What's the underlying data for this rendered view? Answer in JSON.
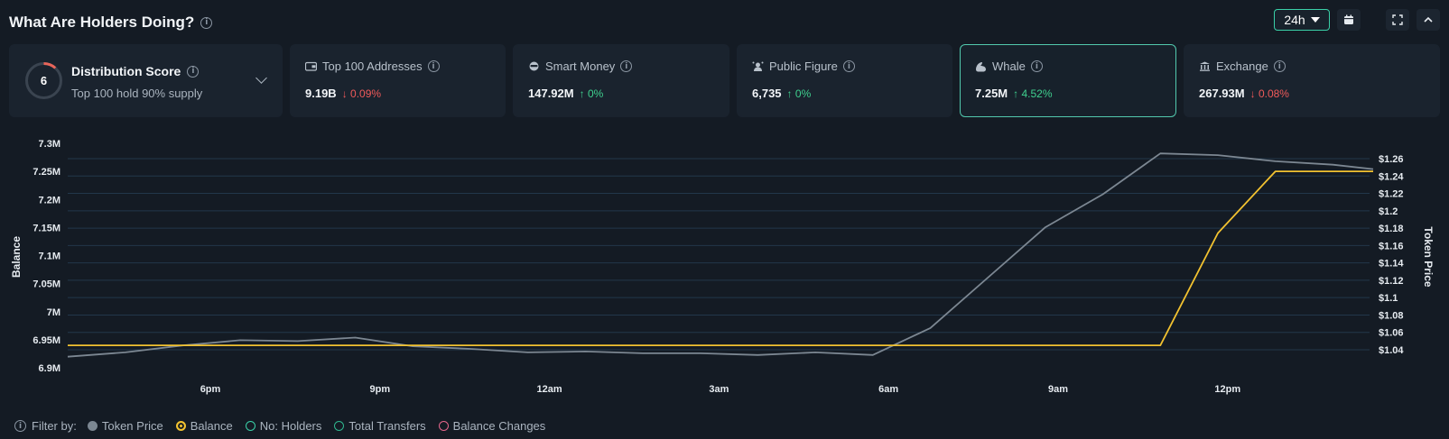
{
  "header": {
    "title": "What Are Holders Doing?",
    "range": "24h"
  },
  "distribution": {
    "score": "6",
    "title": "Distribution Score",
    "subtitle": "Top 100 hold 90% supply"
  },
  "cards": [
    {
      "label": "Top 100 Addresses",
      "value": "9.19B",
      "change": "0.09%",
      "dir": "down",
      "icon": "wallet-icon"
    },
    {
      "label": "Smart Money",
      "value": "147.92M",
      "change": "0%",
      "dir": "up",
      "icon": "smart-money-icon"
    },
    {
      "label": "Public Figure",
      "value": "6,735",
      "change": "0%",
      "dir": "up",
      "icon": "public-figure-icon"
    },
    {
      "label": "Whale",
      "value": "7.25M",
      "change": "4.52%",
      "dir": "up",
      "icon": "whale-icon",
      "active": true
    },
    {
      "label": "Exchange",
      "value": "267.93M",
      "change": "0.08%",
      "dir": "down",
      "icon": "exchange-icon"
    }
  ],
  "colors": {
    "price": "#7c8792",
    "balance": "#f2c230",
    "accent": "#52c9ae",
    "up": "#3fcf8e",
    "down": "#f05a5a"
  },
  "chart_data": {
    "type": "line",
    "x": [
      "6pm",
      "9pm",
      "12am",
      "3am",
      "6am",
      "9am",
      "12pm"
    ],
    "left_axis": {
      "label": "Balance",
      "ticks": [
        "6.9M",
        "6.95M",
        "7M",
        "7.05M",
        "7.1M",
        "7.15M",
        "7.2M",
        "7.25M",
        "7.3M"
      ],
      "range": [
        6.9,
        7.3
      ]
    },
    "right_axis": {
      "label": "Token Price",
      "ticks": [
        "$1.04",
        "$1.06",
        "$1.08",
        "$1.1",
        "$1.12",
        "$1.14",
        "$1.16",
        "$1.18",
        "$1.2",
        "$1.22",
        "$1.24",
        "$1.26"
      ],
      "range": [
        1.03,
        1.27
      ]
    },
    "series": [
      {
        "name": "Token Price",
        "axis": "right",
        "color": "#7c8792",
        "points": [
          [
            -5,
            1.032
          ],
          [
            -4,
            1.037
          ],
          [
            -3,
            1.045
          ],
          [
            -2,
            1.051
          ],
          [
            -1,
            1.05
          ],
          [
            0,
            1.054
          ],
          [
            1,
            1.044
          ],
          [
            2,
            1.041
          ],
          [
            3,
            1.037
          ],
          [
            4,
            1.038
          ],
          [
            5,
            1.036
          ],
          [
            6,
            1.036
          ],
          [
            7,
            1.034
          ],
          [
            8,
            1.037
          ],
          [
            9,
            1.034
          ],
          [
            10,
            1.065
          ],
          [
            11,
            1.123
          ],
          [
            12,
            1.181
          ],
          [
            13,
            1.219
          ],
          [
            14,
            1.266
          ],
          [
            15,
            1.264
          ],
          [
            16,
            1.257
          ],
          [
            17,
            1.253
          ],
          [
            17.7,
            1.248
          ]
        ]
      },
      {
        "name": "Balance",
        "axis": "left",
        "color": "#f2c230",
        "points": [
          [
            -5,
            6.94
          ],
          [
            14,
            6.94
          ],
          [
            15,
            7.14
          ],
          [
            16,
            7.25
          ],
          [
            17.7,
            7.25
          ]
        ]
      }
    ],
    "legend": {
      "label": "Filter by:",
      "items": [
        {
          "name": "Token Price",
          "color": "#7c8792",
          "filled": true
        },
        {
          "name": "Balance",
          "color": "#f2c230",
          "filled": true
        },
        {
          "name": "No: Holders",
          "color": "#3ad0a8",
          "filled": false
        },
        {
          "name": "Total Transfers",
          "color": "#2fb78f",
          "filled": false
        },
        {
          "name": "Balance Changes",
          "color": "#e5668c",
          "filled": false
        }
      ]
    }
  }
}
